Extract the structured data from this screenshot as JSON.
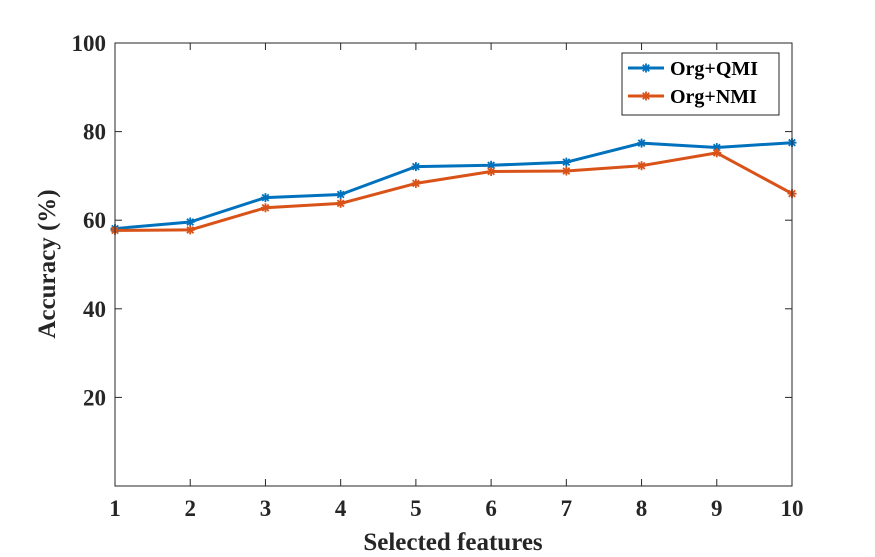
{
  "chart_data": {
    "type": "line",
    "title": "",
    "xlabel": "Selected features",
    "ylabel": "Accuracy (%)",
    "x": [
      1,
      2,
      3,
      4,
      5,
      6,
      7,
      8,
      9,
      10
    ],
    "xlim": [
      1,
      10
    ],
    "ylim": [
      0,
      100
    ],
    "xticks": [
      "1",
      "2",
      "3",
      "4",
      "5",
      "6",
      "7",
      "8",
      "9",
      "10"
    ],
    "yticks": [
      "20",
      "40",
      "60",
      "80",
      "100"
    ],
    "ytick_values": [
      20,
      40,
      60,
      80,
      100
    ],
    "grid": false,
    "legend_position": "top-right",
    "series": [
      {
        "name": "Org+QMI",
        "color": "#0072BD",
        "marker": "asterisk",
        "values": [
          58.1,
          59.6,
          65.1,
          65.8,
          72.1,
          72.4,
          73.1,
          77.4,
          76.4,
          77.5
        ]
      },
      {
        "name": "Org+NMI",
        "color": "#D95319",
        "marker": "asterisk",
        "values": [
          57.7,
          57.8,
          62.8,
          63.8,
          68.3,
          71.0,
          71.1,
          72.3,
          75.2,
          66.0
        ]
      }
    ]
  }
}
